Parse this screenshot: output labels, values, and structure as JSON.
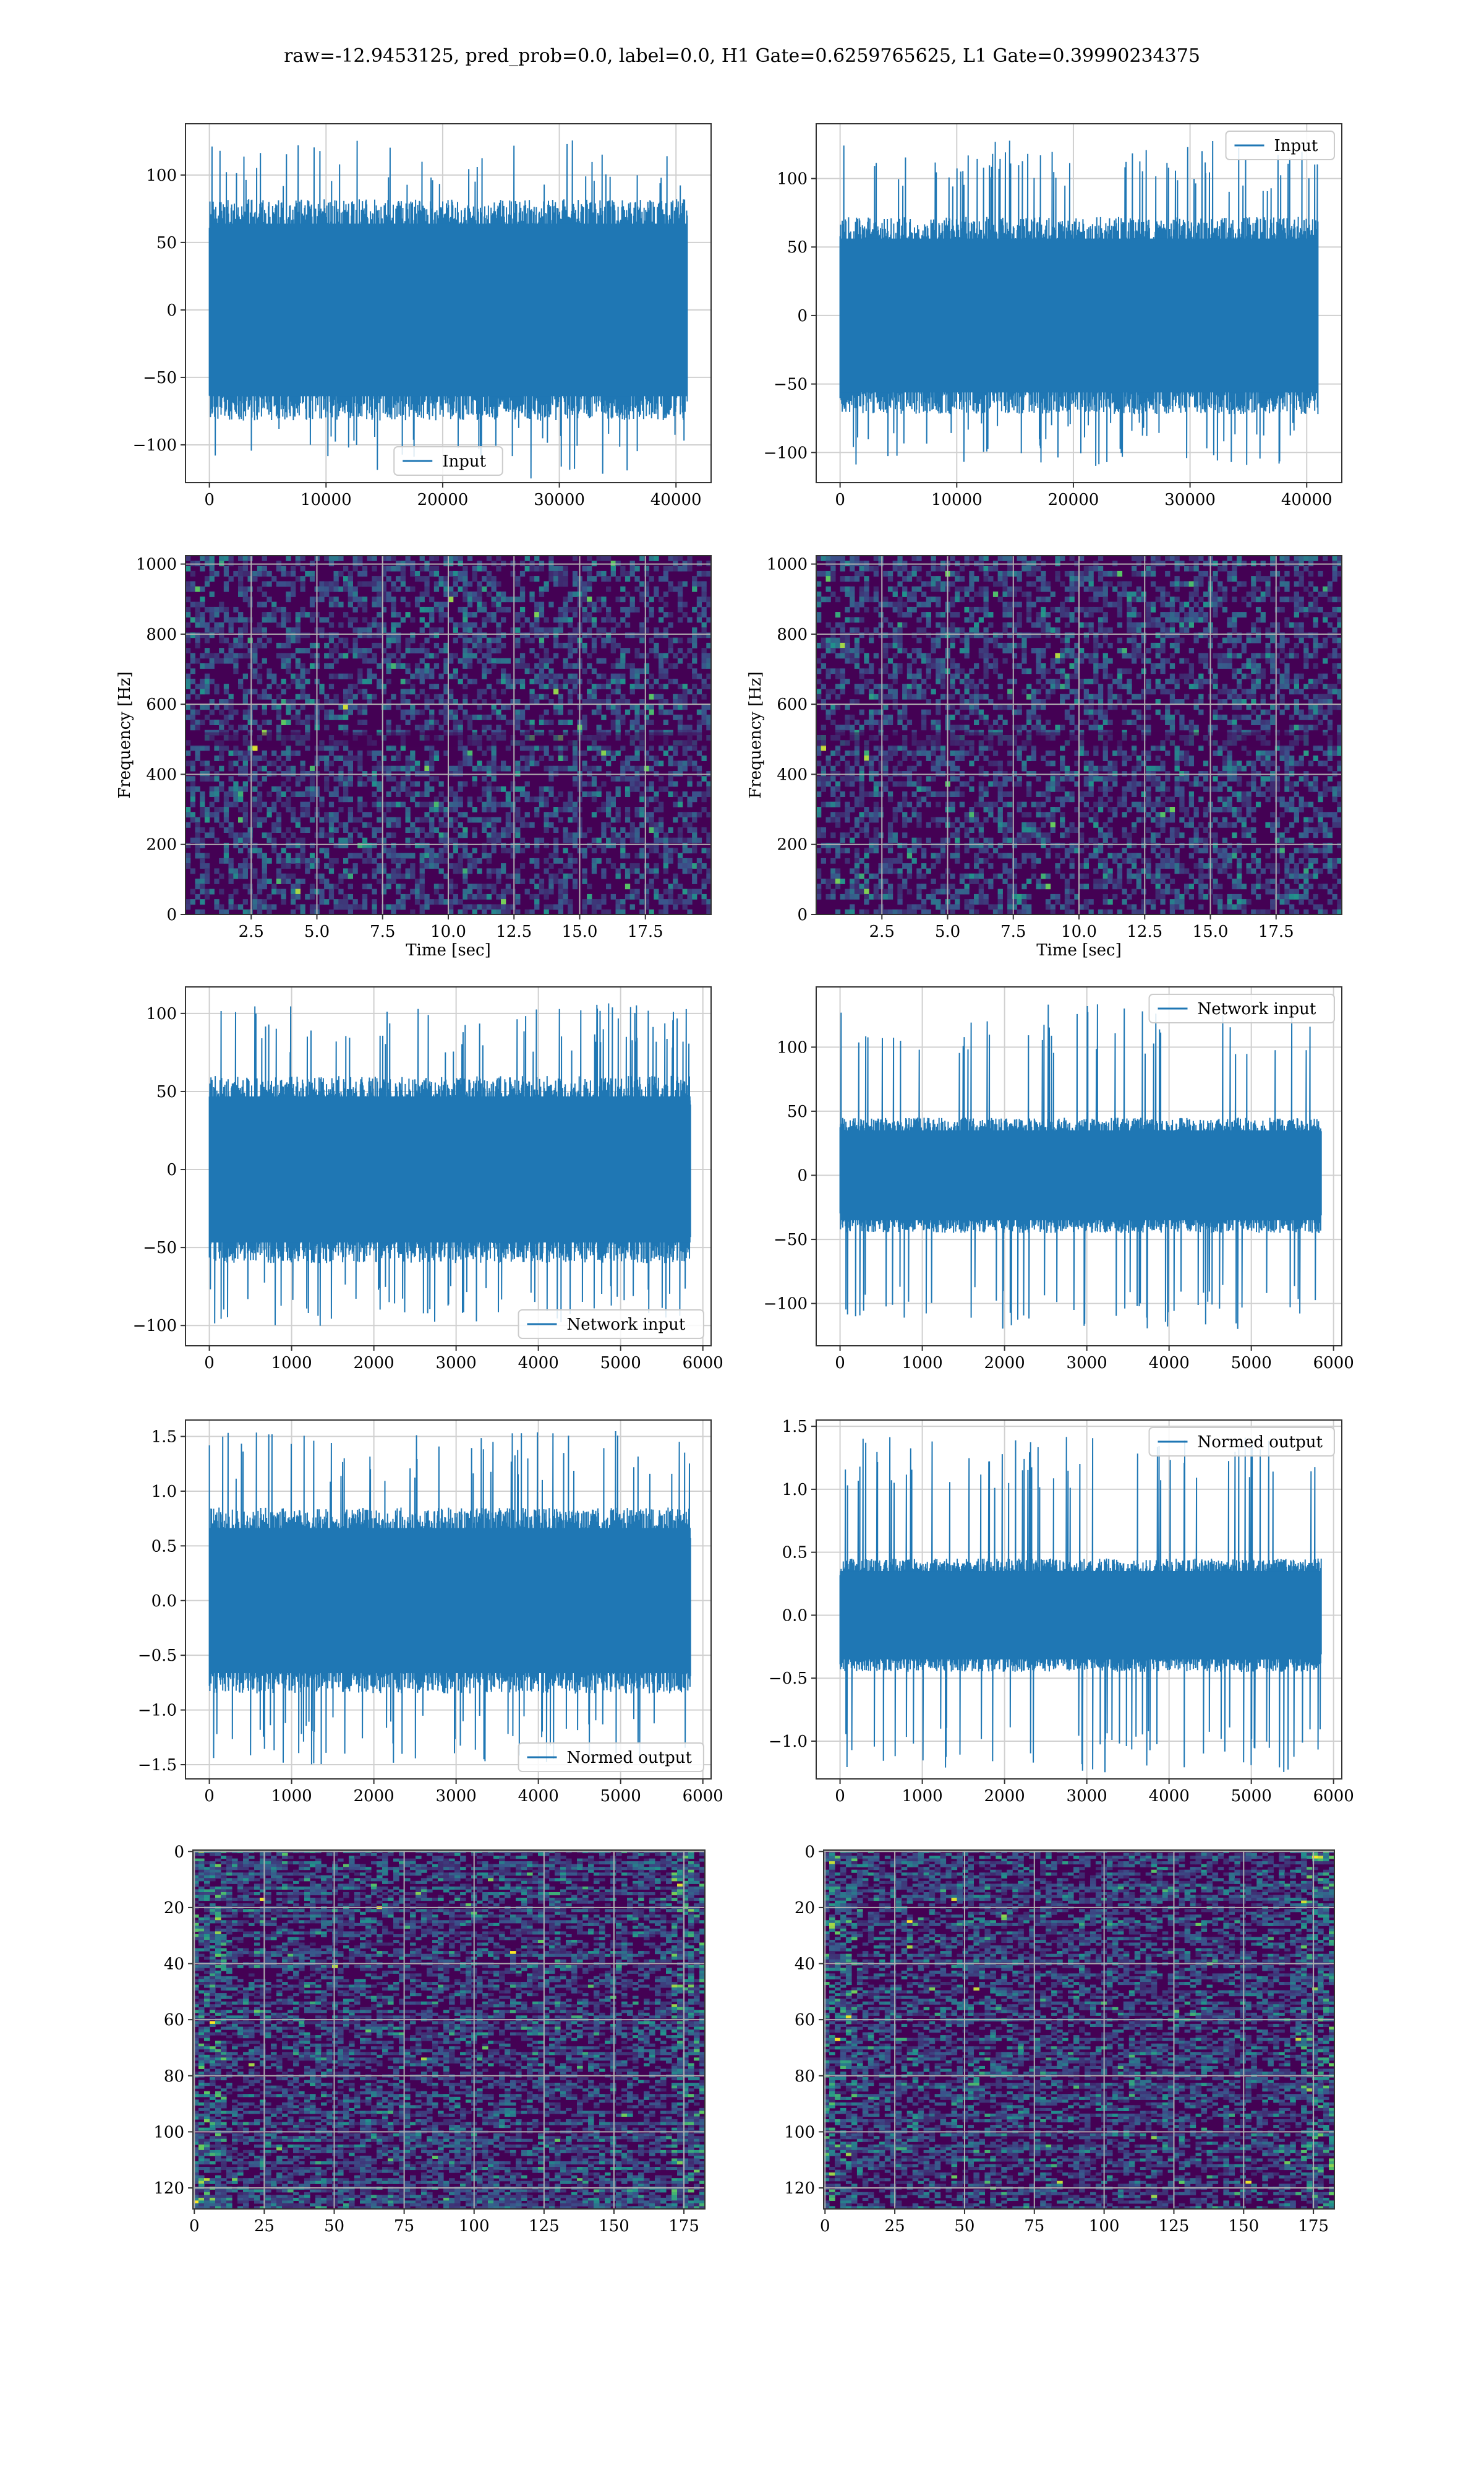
{
  "figure": {
    "title": "raw=-12.9453125, pred_prob=0.0, label=0.0, H1 Gate=0.6259765625, L1 Gate=0.39990234375",
    "colors": {
      "line": "#1f77b4",
      "grid": "#d0d0d0",
      "spine": "#333333",
      "viridis_dark": "#440154",
      "viridis_mid": "#3b528b",
      "viridis_teal": "#21918c",
      "viridis_green": "#5ec962",
      "viridis_yellow": "#fde725"
    }
  },
  "chart_data": [
    {
      "id": "r1-left",
      "type": "line",
      "title": "",
      "xlabel": "",
      "ylabel": "",
      "xlim": [
        -2048,
        43008
      ],
      "ylim": [
        -128,
        138
      ],
      "xticks": [
        0,
        10000,
        20000,
        30000,
        40000
      ],
      "yticks": [
        -100,
        -50,
        0,
        50,
        100
      ],
      "grid": true,
      "legend": {
        "loc": "lower-center",
        "entries": [
          "Input"
        ]
      },
      "series": [
        {
          "name": "Input",
          "n": 40960,
          "x": [
            0,
            40960
          ],
          "envelope": [
            -82,
            82
          ],
          "peaks": [
            -125,
            126
          ],
          "values_shown": "dense noise fills band"
        }
      ]
    },
    {
      "id": "r1-right",
      "type": "line",
      "title": "",
      "xlabel": "",
      "ylabel": "",
      "xlim": [
        -2048,
        43008
      ],
      "ylim": [
        -122,
        140
      ],
      "xticks": [
        0,
        10000,
        20000,
        30000,
        40000
      ],
      "yticks": [
        -100,
        -50,
        0,
        50,
        100
      ],
      "grid": true,
      "legend": {
        "loc": "upper-right",
        "entries": [
          "Input"
        ]
      },
      "series": [
        {
          "name": "Input",
          "n": 40960,
          "x": [
            0,
            40960
          ],
          "envelope": [
            -72,
            72
          ],
          "peaks": [
            -110,
            129
          ]
        }
      ]
    },
    {
      "id": "r2-left",
      "type": "heatmap",
      "title": "",
      "xlabel": "Time [sec]",
      "ylabel": "Frequency [Hz]",
      "xlim": [
        0,
        20
      ],
      "ylim": [
        0,
        1024
      ],
      "xticks": [
        2.5,
        5.0,
        7.5,
        10.0,
        12.5,
        15.0,
        17.5
      ],
      "yticks": [
        0,
        200,
        400,
        600,
        800,
        1000
      ],
      "grid": true,
      "colormap": "viridis"
    },
    {
      "id": "r2-right",
      "type": "heatmap",
      "title": "",
      "xlabel": "Time [sec]",
      "ylabel": "Frequency [Hz]",
      "xlim": [
        0,
        20
      ],
      "ylim": [
        0,
        1024
      ],
      "xticks": [
        2.5,
        5.0,
        7.5,
        10.0,
        12.5,
        15.0,
        17.5
      ],
      "yticks": [
        0,
        200,
        400,
        600,
        800,
        1000
      ],
      "grid": true,
      "colormap": "viridis"
    },
    {
      "id": "r3-left",
      "type": "line",
      "title": "",
      "xlabel": "",
      "ylabel": "",
      "xlim": [
        -290,
        6100
      ],
      "ylim": [
        -113,
        117
      ],
      "xticks": [
        0,
        1000,
        2000,
        3000,
        4000,
        5000,
        6000
      ],
      "yticks": [
        -100,
        -50,
        0,
        50,
        100
      ],
      "grid": true,
      "legend": {
        "loc": "lower-right",
        "entries": [
          "Network input"
        ]
      },
      "series": [
        {
          "name": "Network input",
          "n": 5850,
          "x": [
            0,
            5850
          ],
          "envelope": [
            -60,
            60
          ],
          "peaks": [
            -102,
            107
          ]
        }
      ]
    },
    {
      "id": "r3-right",
      "type": "line",
      "title": "",
      "xlabel": "",
      "ylabel": "",
      "xlim": [
        -290,
        6100
      ],
      "ylim": [
        -133,
        147
      ],
      "xticks": [
        0,
        1000,
        2000,
        3000,
        4000,
        5000,
        6000
      ],
      "yticks": [
        -100,
        -50,
        0,
        50,
        100
      ],
      "grid": true,
      "legend": {
        "loc": "upper-right",
        "entries": [
          "Network input"
        ]
      },
      "series": [
        {
          "name": "Network input",
          "n": 5850,
          "x": [
            0,
            5850
          ],
          "envelope": [
            -45,
            45
          ],
          "peaks": [
            -120,
            134
          ]
        }
      ]
    },
    {
      "id": "r4-left",
      "type": "line",
      "title": "",
      "xlabel": "",
      "ylabel": "",
      "xlim": [
        -290,
        6100
      ],
      "ylim": [
        -1.63,
        1.65
      ],
      "xticks": [
        0,
        1000,
        2000,
        3000,
        4000,
        5000,
        6000
      ],
      "yticks": [
        -1.5,
        -1.0,
        -0.5,
        0.0,
        0.5,
        1.0,
        1.5
      ],
      "grid": true,
      "legend": {
        "loc": "lower-right",
        "entries": [
          "Normed output"
        ]
      },
      "series": [
        {
          "name": "Normed output",
          "n": 5850,
          "x": [
            0,
            5850
          ],
          "envelope": [
            -0.85,
            0.85
          ],
          "peaks": [
            -1.5,
            1.55
          ]
        }
      ]
    },
    {
      "id": "r4-right",
      "type": "line",
      "title": "",
      "xlabel": "",
      "ylabel": "",
      "xlim": [
        -290,
        6100
      ],
      "ylim": [
        -1.3,
        1.55
      ],
      "xticks": [
        0,
        1000,
        2000,
        3000,
        4000,
        5000,
        6000
      ],
      "yticks": [
        -1.0,
        -0.5,
        0.0,
        0.5,
        1.0,
        1.5
      ],
      "grid": true,
      "legend": {
        "loc": "upper-right",
        "entries": [
          "Normed output"
        ]
      },
      "series": [
        {
          "name": "Normed output",
          "n": 5850,
          "x": [
            0,
            5850
          ],
          "envelope": [
            -0.45,
            0.45
          ],
          "peaks": [
            -1.25,
            1.43
          ]
        }
      ]
    },
    {
      "id": "r5-left",
      "type": "heatmap",
      "title": "",
      "xlabel": "",
      "ylabel": "",
      "xlim": [
        -0.5,
        182.5
      ],
      "ylim": [
        127.5,
        -0.5
      ],
      "xticks": [
        0,
        25,
        50,
        75,
        100,
        125,
        150,
        175
      ],
      "yticks": [
        0,
        20,
        40,
        60,
        80,
        100,
        120
      ],
      "grid": true,
      "colormap": "viridis",
      "shape": [
        128,
        183
      ]
    },
    {
      "id": "r5-right",
      "type": "heatmap",
      "title": "",
      "xlabel": "",
      "ylabel": "",
      "xlim": [
        -0.5,
        182.5
      ],
      "ylim": [
        127.5,
        -0.5
      ],
      "xticks": [
        0,
        25,
        50,
        75,
        100,
        125,
        150,
        175
      ],
      "yticks": [
        0,
        20,
        40,
        60,
        80,
        100,
        120
      ],
      "grid": true,
      "colormap": "viridis",
      "shape": [
        128,
        183
      ]
    }
  ]
}
